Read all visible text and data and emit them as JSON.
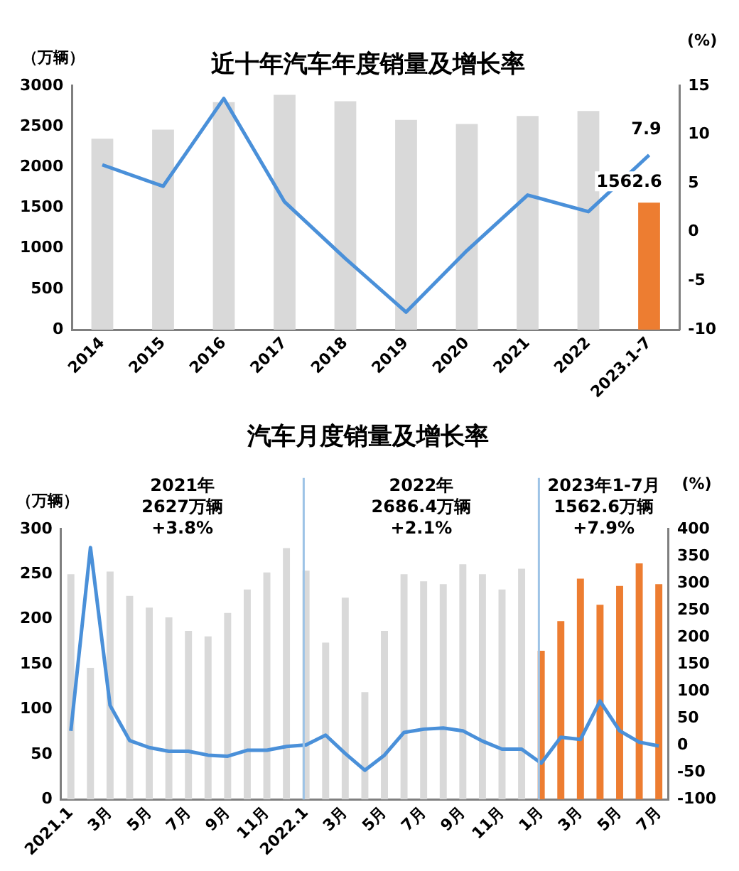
{
  "chart_data": [
    {
      "type": "bar",
      "title": "近十年汽车年度销量及增长率",
      "ylabel": "（万辆）",
      "y2label": "(%)",
      "categories": [
        "2014",
        "2015",
        "2016",
        "2017",
        "2018",
        "2019",
        "2020",
        "2021",
        "2022",
        "2023.1-7"
      ],
      "series": [
        {
          "colors": [
            "#d9d9d9",
            "#d9d9d9",
            "#d9d9d9",
            "#d9d9d9",
            "#d9d9d9",
            "#d9d9d9",
            "#d9d9d9",
            "#d9d9d9",
            "#d9d9d9",
            "#ed7d31"
          ],
          "values": [
            2350,
            2460,
            2800,
            2890,
            2810,
            2580,
            2530,
            2630,
            2690,
            1562.6
          ],
          "value_labels": [
            null,
            null,
            null,
            null,
            null,
            null,
            null,
            null,
            null,
            "1562.6"
          ]
        },
        {
          "type": "line",
          "axis": "y2",
          "color": "#4a90d9",
          "values": [
            6.9,
            4.7,
            13.7,
            3.1,
            -2.7,
            -8.2,
            -1.9,
            3.8,
            2.1,
            7.9
          ],
          "value_labels": [
            null,
            null,
            null,
            null,
            null,
            null,
            null,
            null,
            null,
            "7.9"
          ]
        }
      ],
      "ylim": [
        0,
        3000
      ],
      "yticks": [
        0,
        500,
        1000,
        1500,
        2000,
        2500,
        3000
      ],
      "y2lim": [
        -10,
        15
      ],
      "y2ticks": [
        -10,
        -5,
        0,
        5,
        10,
        15
      ],
      "grid": false,
      "legend": false,
      "marker": "none"
    },
    {
      "type": "bar",
      "title": "汽车月度销量及增长率",
      "ylabel": "（万辆）",
      "y2label": "(%)",
      "categories": [
        "2021.1",
        null,
        "3月",
        null,
        "5月",
        null,
        "7月",
        null,
        "9月",
        null,
        "11月",
        null,
        "2022.1",
        null,
        "3月",
        null,
        "5月",
        null,
        "7月",
        null,
        "9月",
        null,
        "11月",
        null,
        "1月",
        null,
        "3月",
        null,
        "5月",
        null,
        "7月"
      ],
      "series": [
        {
          "colors": [
            "#d9d9d9",
            "#d9d9d9",
            "#d9d9d9",
            "#d9d9d9",
            "#d9d9d9",
            "#d9d9d9",
            "#d9d9d9",
            "#d9d9d9",
            "#d9d9d9",
            "#d9d9d9",
            "#d9d9d9",
            "#d9d9d9",
            "#d9d9d9",
            "#d9d9d9",
            "#d9d9d9",
            "#d9d9d9",
            "#d9d9d9",
            "#d9d9d9",
            "#d9d9d9",
            "#d9d9d9",
            "#d9d9d9",
            "#d9d9d9",
            "#d9d9d9",
            "#d9d9d9",
            "#ed7d31",
            "#ed7d31",
            "#ed7d31",
            "#ed7d31",
            "#ed7d31",
            "#ed7d31",
            "#ed7d31"
          ],
          "values": [
            250,
            146,
            253,
            226,
            213,
            202,
            187,
            181,
            207,
            233,
            252,
            279,
            254,
            174,
            224,
            119,
            187,
            250,
            242,
            239,
            261,
            250,
            233,
            256,
            165,
            198,
            245,
            216,
            237,
            262,
            239
          ]
        },
        {
          "type": "line",
          "axis": "y2",
          "color": "#4a90d9",
          "values": [
            27,
            366,
            74,
            9,
            -4,
            -11,
            -11,
            -18,
            -20,
            -9,
            -9,
            -2,
            1,
            19,
            -15,
            -46,
            -18,
            24,
            30,
            32,
            27,
            8,
            -7,
            -7,
            -33,
            15,
            11,
            82,
            27,
            6,
            -1
          ]
        }
      ],
      "ref_lines": [
        {
          "axis": "x",
          "value": "2022.1",
          "color": "#9dc3e6"
        },
        {
          "axis": "x",
          "value": "1月",
          "color": "#9dc3e6"
        }
      ],
      "annotations": [
        "2021年\n2627万辆\n+3.8%",
        "2022年\n2686.4万辆\n+2.1%",
        "2023年1-7月\n1562.6万辆\n+7.9%"
      ],
      "ylim": [
        0,
        300
      ],
      "yticks": [
        0,
        50,
        100,
        150,
        200,
        250,
        300
      ],
      "y2lim": [
        -100,
        400
      ],
      "y2ticks": [
        -100,
        -50,
        0,
        50,
        100,
        150,
        200,
        250,
        300,
        350,
        400
      ],
      "grid": false,
      "legend": false,
      "marker": "none"
    }
  ]
}
